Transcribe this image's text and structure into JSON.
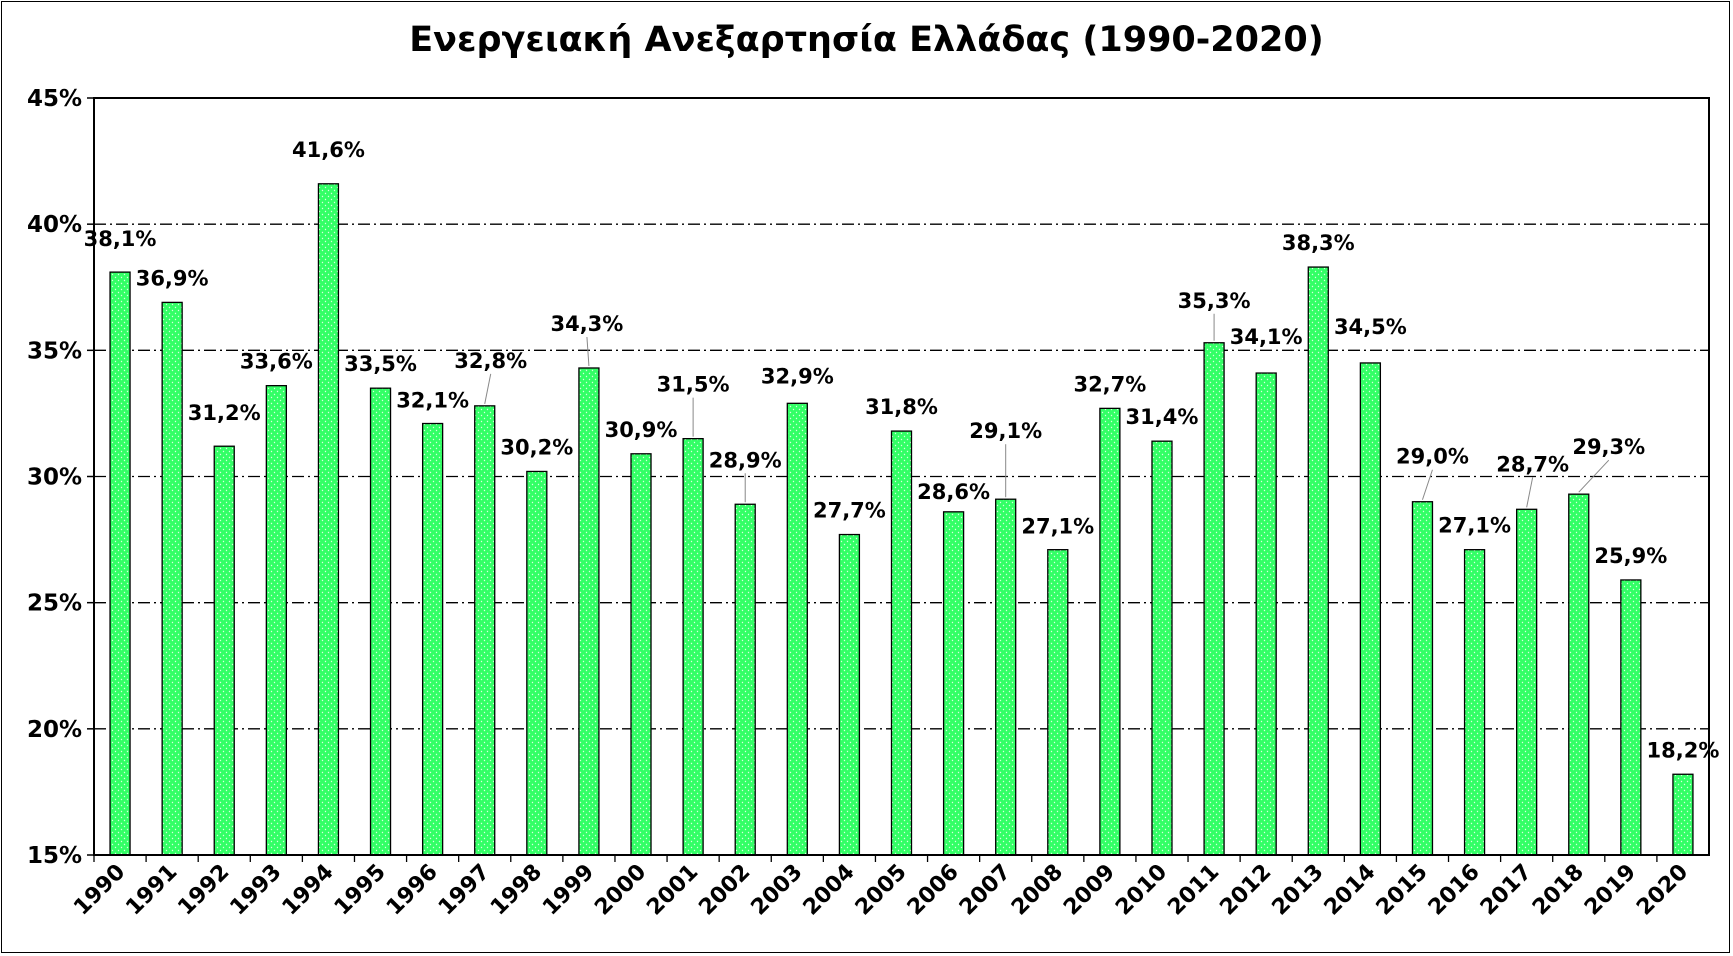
{
  "chart_data": {
    "type": "bar",
    "title": "Ενεργειακή Ανεξαρτησία Ελλάδας (1990-2020)",
    "xlabel": "",
    "ylabel": "",
    "ylim": [
      15,
      45
    ],
    "yticks": [
      "15%",
      "20%",
      "25%",
      "30%",
      "35%",
      "40%",
      "45%"
    ],
    "grid": "horizontal dash-dot",
    "legend": "none",
    "categories": [
      "1990",
      "1991",
      "1992",
      "1993",
      "1994",
      "1995",
      "1996",
      "1997",
      "1998",
      "1999",
      "2000",
      "2001",
      "2002",
      "2003",
      "2004",
      "2005",
      "2006",
      "2007",
      "2008",
      "2009",
      "2010",
      "2011",
      "2012",
      "2013",
      "2014",
      "2015",
      "2016",
      "2017",
      "2018",
      "2019",
      "2020"
    ],
    "values": [
      38.1,
      36.9,
      31.2,
      33.6,
      41.6,
      33.5,
      32.1,
      32.8,
      30.2,
      34.3,
      30.9,
      31.5,
      28.9,
      32.9,
      27.7,
      31.8,
      28.6,
      29.1,
      27.1,
      32.7,
      31.4,
      35.3,
      34.1,
      38.3,
      34.5,
      29.0,
      27.1,
      28.7,
      29.3,
      25.9,
      18.2
    ],
    "labels": [
      "38,1%",
      "36,9%",
      "31,2%",
      "33,6%",
      "41,6%",
      "33,5%",
      "32,1%",
      "32,8%",
      "30,2%",
      "34,3%",
      "30,9%",
      "31,5%",
      "28,9%",
      "32,9%",
      "27,7%",
      "31,8%",
      "28,6%",
      "29,1%",
      "27,1%",
      "32,7%",
      "31,4%",
      "35,3%",
      "34,1%",
      "38,3%",
      "34,5%",
      "29,0%",
      "27,1%",
      "28,7%",
      "29,3%",
      "25,9%",
      "18,2%"
    ],
    "bar_color": "#33ff66",
    "bar_edge_color": "#000000",
    "highlight_label_color": "#ff0000",
    "highlight_index": 30
  }
}
